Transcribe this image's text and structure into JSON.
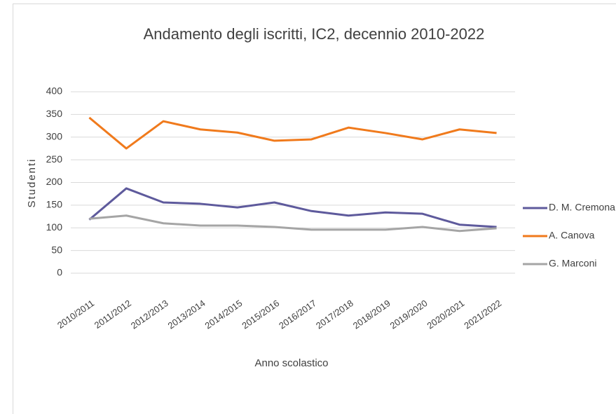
{
  "chart_data": {
    "type": "line",
    "title": "Andamento degli iscritti, IC2, decennio 2010-2022",
    "x_label": "Anno scolastico",
    "y_label": "Studenti",
    "categories": [
      "2010/2011",
      "2011/2012",
      "2012/2013",
      "2013/2014",
      "2014/2015",
      "2015/2016",
      "2016/2017",
      "2017/2018",
      "2018/2019",
      "2019/2020",
      "2020/2021",
      "2021/2022"
    ],
    "series": [
      {
        "name": "D. M. Cremona",
        "color": "#5e5a9c",
        "values": [
          118,
          187,
          156,
          153,
          145,
          156,
          137,
          127,
          134,
          131,
          107,
          102
        ]
      },
      {
        "name": "A. Canova",
        "color": "#f07a1c",
        "values": [
          343,
          275,
          335,
          317,
          310,
          292,
          295,
          321,
          309,
          295,
          317,
          309
        ]
      },
      {
        "name": "G. Marconi",
        "color": "#a5a5a5",
        "values": [
          120,
          127,
          110,
          105,
          105,
          102,
          96,
          96,
          96,
          102,
          93,
          99
        ]
      }
    ],
    "ylim": [
      0,
      400
    ],
    "yticks": [
      0,
      50,
      100,
      150,
      200,
      250,
      300,
      350,
      400
    ],
    "grid": true,
    "legend": "right"
  }
}
